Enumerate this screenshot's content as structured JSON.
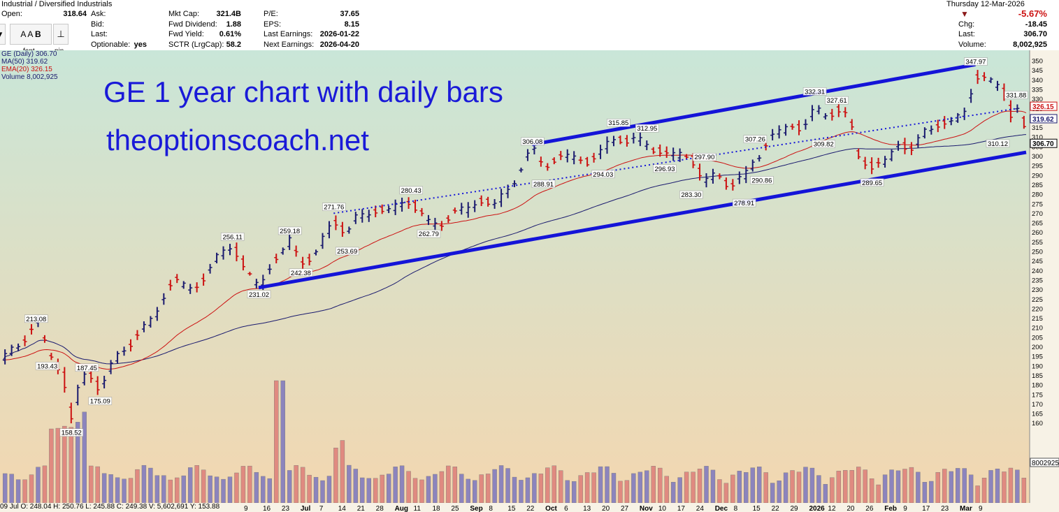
{
  "header": {
    "sector": "Industrial / Diversified Industrials",
    "left_labels": [
      {
        "label": "Open:",
        "value": "318.64"
      }
    ],
    "col2": [
      {
        "label": "Ask:",
        "value": ""
      },
      {
        "label": "Bid:",
        "value": ""
      },
      {
        "label": "Last:",
        "value": ""
      },
      {
        "label": "Optionable:",
        "value": "yes"
      }
    ],
    "col3": [
      {
        "label": "Mkt Cap:",
        "value": "321.4B"
      },
      {
        "label": "Fwd Dividend:",
        "value": "1.88"
      },
      {
        "label": "Fwd Yield:",
        "value": "0.61%"
      },
      {
        "label": "SCTR (LrgCap):",
        "value": "58.2"
      }
    ],
    "col4": [
      {
        "label": "P/E:",
        "value": "37.65"
      },
      {
        "label": "EPS:",
        "value": "8.15"
      },
      {
        "label": "Last Earnings:",
        "value": "2026-01-22"
      },
      {
        "label": "Next Earnings:",
        "value": "2026-04-20"
      }
    ],
    "date": "Thursday  12-Mar-2026",
    "pct_change": "-5.67%",
    "right": [
      {
        "label": "Chg:",
        "value": "-18.45"
      },
      {
        "label": "Last:",
        "value": "306.70"
      },
      {
        "label": "Volume:",
        "value": "8,002,925"
      }
    ],
    "down_color": "#8b1a1a"
  },
  "toolbar": {
    "font_label": "font",
    "pin_label": "pin",
    "bold_label": "B",
    "font_up_label": "A",
    "font_down_label": "A"
  },
  "legend": {
    "symbol": "GE (Daily) 306.70",
    "ma50": "MA(50) 319.62",
    "ema20": "EMA(20) 326.15",
    "volume": "Volume 8,002,925"
  },
  "overlay": {
    "line1": "GE 1 year chart with daily bars",
    "line2": "theoptionscoach.net"
  },
  "footer": "09 Jul O: 248.04   H: 250.76   L: 245.88   C: 249.38   V: 5,602,691   Y: 153.88",
  "colors": {
    "up_bar": "#1a1a6e",
    "down_bar": "#cc1111",
    "ma50": "#1a1a6e",
    "ema20": "#cc1111",
    "channel": "#1414d8",
    "vol_up": "#8c84bd",
    "vol_down": "#e08a80",
    "bg_top": "#c9e6d8",
    "bg_bottom": "#f3d7b0"
  },
  "chart_data": {
    "type": "ohlc",
    "title": "GE 1 year chart with daily bars",
    "ylim": [
      155,
      352
    ],
    "yticks": [
      160,
      165,
      170,
      175,
      180,
      185,
      190,
      195,
      200,
      205,
      210,
      215,
      220,
      225,
      230,
      235,
      240,
      245,
      250,
      255,
      260,
      265,
      270,
      275,
      280,
      285,
      290,
      295,
      300,
      305,
      310,
      315,
      320,
      325,
      330,
      335,
      340,
      345,
      350
    ],
    "x_labels": [
      "23",
      "Jul",
      "7",
      "14",
      "21",
      "28",
      "Aug",
      "11",
      "18",
      "25",
      "Sep",
      "8",
      "15",
      "22",
      "Oct",
      "6",
      "13",
      "20",
      "27",
      "Nov",
      "10",
      "17",
      "24",
      "Dec",
      "8",
      "15",
      "22",
      "29",
      "2026",
      "12",
      "20",
      "26",
      "Feb",
      "9",
      "17",
      "23",
      "Mar",
      "9"
    ],
    "x_labels_partial": [
      "9",
      "16"
    ],
    "price_anchors": [
      {
        "i": 0,
        "v": 193
      },
      {
        "i": 8,
        "v": 203
      },
      {
        "i": 16,
        "v": 212
      },
      {
        "i": 20,
        "v": 200
      },
      {
        "i": 22,
        "v": 196
      },
      {
        "i": 27,
        "v": 184
      },
      {
        "i": 31,
        "v": 162
      },
      {
        "i": 34,
        "v": 178
      },
      {
        "i": 38,
        "v": 187
      },
      {
        "i": 44,
        "v": 178
      },
      {
        "i": 47,
        "v": 185
      },
      {
        "i": 54,
        "v": 199
      },
      {
        "i": 62,
        "v": 206
      },
      {
        "i": 70,
        "v": 220
      },
      {
        "i": 78,
        "v": 236
      },
      {
        "i": 86,
        "v": 229
      },
      {
        "i": 95,
        "v": 243
      },
      {
        "i": 104,
        "v": 255
      },
      {
        "i": 110,
        "v": 238
      },
      {
        "i": 116,
        "v": 233
      },
      {
        "i": 124,
        "v": 246
      },
      {
        "i": 130,
        "v": 256
      },
      {
        "i": 135,
        "v": 244
      },
      {
        "i": 143,
        "v": 250
      },
      {
        "i": 150,
        "v": 268
      },
      {
        "i": 156,
        "v": 258
      },
      {
        "i": 161,
        "v": 270
      },
      {
        "i": 167,
        "v": 270
      },
      {
        "i": 174,
        "v": 272
      },
      {
        "i": 180,
        "v": 274
      },
      {
        "i": 185,
        "v": 277
      },
      {
        "i": 193,
        "v": 264
      },
      {
        "i": 200,
        "v": 266
      },
      {
        "i": 208,
        "v": 272
      },
      {
        "i": 216,
        "v": 276
      },
      {
        "i": 223,
        "v": 275
      },
      {
        "i": 230,
        "v": 283
      },
      {
        "i": 236,
        "v": 297
      },
      {
        "i": 240,
        "v": 303
      },
      {
        "i": 245,
        "v": 296
      },
      {
        "i": 252,
        "v": 298
      },
      {
        "i": 258,
        "v": 301
      },
      {
        "i": 265,
        "v": 296
      },
      {
        "i": 272,
        "v": 304
      },
      {
        "i": 279,
        "v": 310
      },
      {
        "i": 284,
        "v": 308
      },
      {
        "i": 292,
        "v": 307
      },
      {
        "i": 300,
        "v": 300
      },
      {
        "i": 307,
        "v": 302
      },
      {
        "i": 312,
        "v": 298
      },
      {
        "i": 318,
        "v": 287
      },
      {
        "i": 324,
        "v": 290
      },
      {
        "i": 330,
        "v": 285
      },
      {
        "i": 336,
        "v": 288
      },
      {
        "i": 340,
        "v": 298
      },
      {
        "i": 344,
        "v": 302
      },
      {
        "i": 350,
        "v": 312
      },
      {
        "i": 356,
        "v": 316
      },
      {
        "i": 362,
        "v": 314
      },
      {
        "i": 368,
        "v": 325
      },
      {
        "i": 372,
        "v": 321
      },
      {
        "i": 378,
        "v": 325
      },
      {
        "i": 384,
        "v": 318
      },
      {
        "i": 388,
        "v": 301
      },
      {
        "i": 394,
        "v": 293
      },
      {
        "i": 400,
        "v": 298
      },
      {
        "i": 406,
        "v": 306
      },
      {
        "i": 412,
        "v": 304
      },
      {
        "i": 418,
        "v": 312
      },
      {
        "i": 424,
        "v": 318
      },
      {
        "i": 430,
        "v": 316
      },
      {
        "i": 436,
        "v": 325
      },
      {
        "i": 441,
        "v": 340
      },
      {
        "i": 447,
        "v": 341
      },
      {
        "i": 453,
        "v": 335
      },
      {
        "i": 457,
        "v": 322
      },
      {
        "i": 461,
        "v": 327
      },
      {
        "i": 464,
        "v": 306.7
      }
    ],
    "last_index": 464,
    "price_labels": [
      {
        "text": "213.08",
        "i": 15,
        "v": 213.08,
        "pos": "above"
      },
      {
        "text": "193.43",
        "i": 20,
        "v": 193.43,
        "pos": "below"
      },
      {
        "text": "187.45",
        "i": 38,
        "v": 187.45,
        "pos": "above"
      },
      {
        "text": "175.09",
        "i": 44,
        "v": 175.09,
        "pos": "below"
      },
      {
        "text": "158.52",
        "i": 31,
        "v": 158.52,
        "pos": "below"
      },
      {
        "text": "256.11",
        "i": 104,
        "v": 256.11,
        "pos": "above"
      },
      {
        "text": "231.02",
        "i": 116,
        "v": 231.02,
        "pos": "below"
      },
      {
        "text": "259.18",
        "i": 130,
        "v": 259.18,
        "pos": "above"
      },
      {
        "text": "242.38",
        "i": 135,
        "v": 242.38,
        "pos": "below"
      },
      {
        "text": "271.76",
        "i": 150,
        "v": 271.76,
        "pos": "above"
      },
      {
        "text": "253.69",
        "i": 156,
        "v": 253.69,
        "pos": "below"
      },
      {
        "text": "280.43",
        "i": 185,
        "v": 280.43,
        "pos": "above"
      },
      {
        "text": "262.79",
        "i": 193,
        "v": 262.79,
        "pos": "below"
      },
      {
        "text": "306.08",
        "i": 240,
        "v": 306.08,
        "pos": "above"
      },
      {
        "text": "288.91",
        "i": 245,
        "v": 288.91,
        "pos": "below"
      },
      {
        "text": "315.85",
        "i": 279,
        "v": 315.85,
        "pos": "above"
      },
      {
        "text": "294.03",
        "i": 272,
        "v": 294.03,
        "pos": "below"
      },
      {
        "text": "312.95",
        "i": 292,
        "v": 312.95,
        "pos": "above"
      },
      {
        "text": "296.93",
        "i": 300,
        "v": 296.93,
        "pos": "below"
      },
      {
        "text": "297.90",
        "i": 318,
        "v": 297.9,
        "pos": "above"
      },
      {
        "text": "283.30",
        "i": 312,
        "v": 283.3,
        "pos": "below"
      },
      {
        "text": "278.91",
        "i": 336,
        "v": 278.91,
        "pos": "below"
      },
      {
        "text": "307.26",
        "i": 341,
        "v": 307.26,
        "pos": "above"
      },
      {
        "text": "290.86",
        "i": 344,
        "v": 290.86,
        "pos": "below"
      },
      {
        "text": "332.31",
        "i": 368,
        "v": 332.31,
        "pos": "above"
      },
      {
        "text": "327.61",
        "i": 378,
        "v": 327.61,
        "pos": "above"
      },
      {
        "text": "309.82",
        "i": 372,
        "v": 309.82,
        "pos": "below"
      },
      {
        "text": "289.65",
        "i": 394,
        "v": 289.65,
        "pos": "below"
      },
      {
        "text": "347.97",
        "i": 441,
        "v": 347.97,
        "pos": "above"
      },
      {
        "text": "331.88",
        "i": 453,
        "v": 331.88,
        "pos": "right"
      },
      {
        "text": "310.12",
        "i": 451,
        "v": 310.12,
        "pos": "below"
      }
    ],
    "right_tags": [
      {
        "text": "326.15",
        "v": 326.15,
        "color": "#cc1111"
      },
      {
        "text": "319.62",
        "v": 319.62,
        "color": "#1a1a6e"
      },
      {
        "text": "306.70",
        "v": 306.7,
        "color": "#000000"
      }
    ],
    "volume_tag": "8002925",
    "channel": {
      "upper": [
        {
          "i": 240,
          "v": 306.08
        },
        {
          "i": 441,
          "v": 348
        }
      ],
      "lower": [
        {
          "i": 116,
          "v": 231.02
        },
        {
          "i": 464,
          "v": 302
        }
      ],
      "mid": [
        {
          "i": 150,
          "v": 270
        },
        {
          "i": 460,
          "v": 325
        }
      ]
    }
  }
}
